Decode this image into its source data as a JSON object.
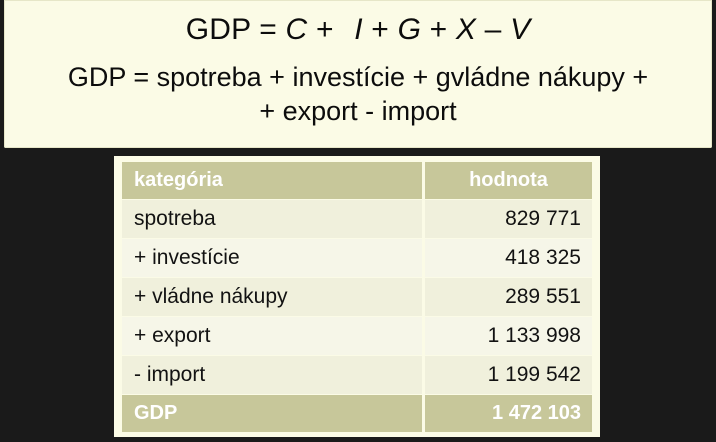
{
  "formula": {
    "main": {
      "lhs": "GDP = ",
      "c": "C",
      "plus1": " + ",
      "i": "I",
      "plus2": " + ",
      "g": "G",
      "plus3": " + ",
      "x": "X",
      "minus": " – ",
      "v": "V"
    },
    "line1": "GDP = spotreba + investície + gvládne nákupy +",
    "line2": "+ export - import"
  },
  "table": {
    "headers": {
      "category": "kategória",
      "value": "hodnota"
    },
    "rows": [
      {
        "category": "spotreba",
        "value": "829 771"
      },
      {
        "category": "+ investície",
        "value": "418 325"
      },
      {
        "category": "+ vládne nákupy",
        "value": "289 551"
      },
      {
        "category": "+ export",
        "value": "1 133 998"
      },
      {
        "category": "- import",
        "value": "1 199 542"
      }
    ],
    "total": {
      "category": "GDP",
      "value": "1 472 103"
    }
  },
  "colors": {
    "panel_background": "#fbfbe6",
    "header_background": "#c7c79a",
    "page_background": "#1a1a1a"
  }
}
